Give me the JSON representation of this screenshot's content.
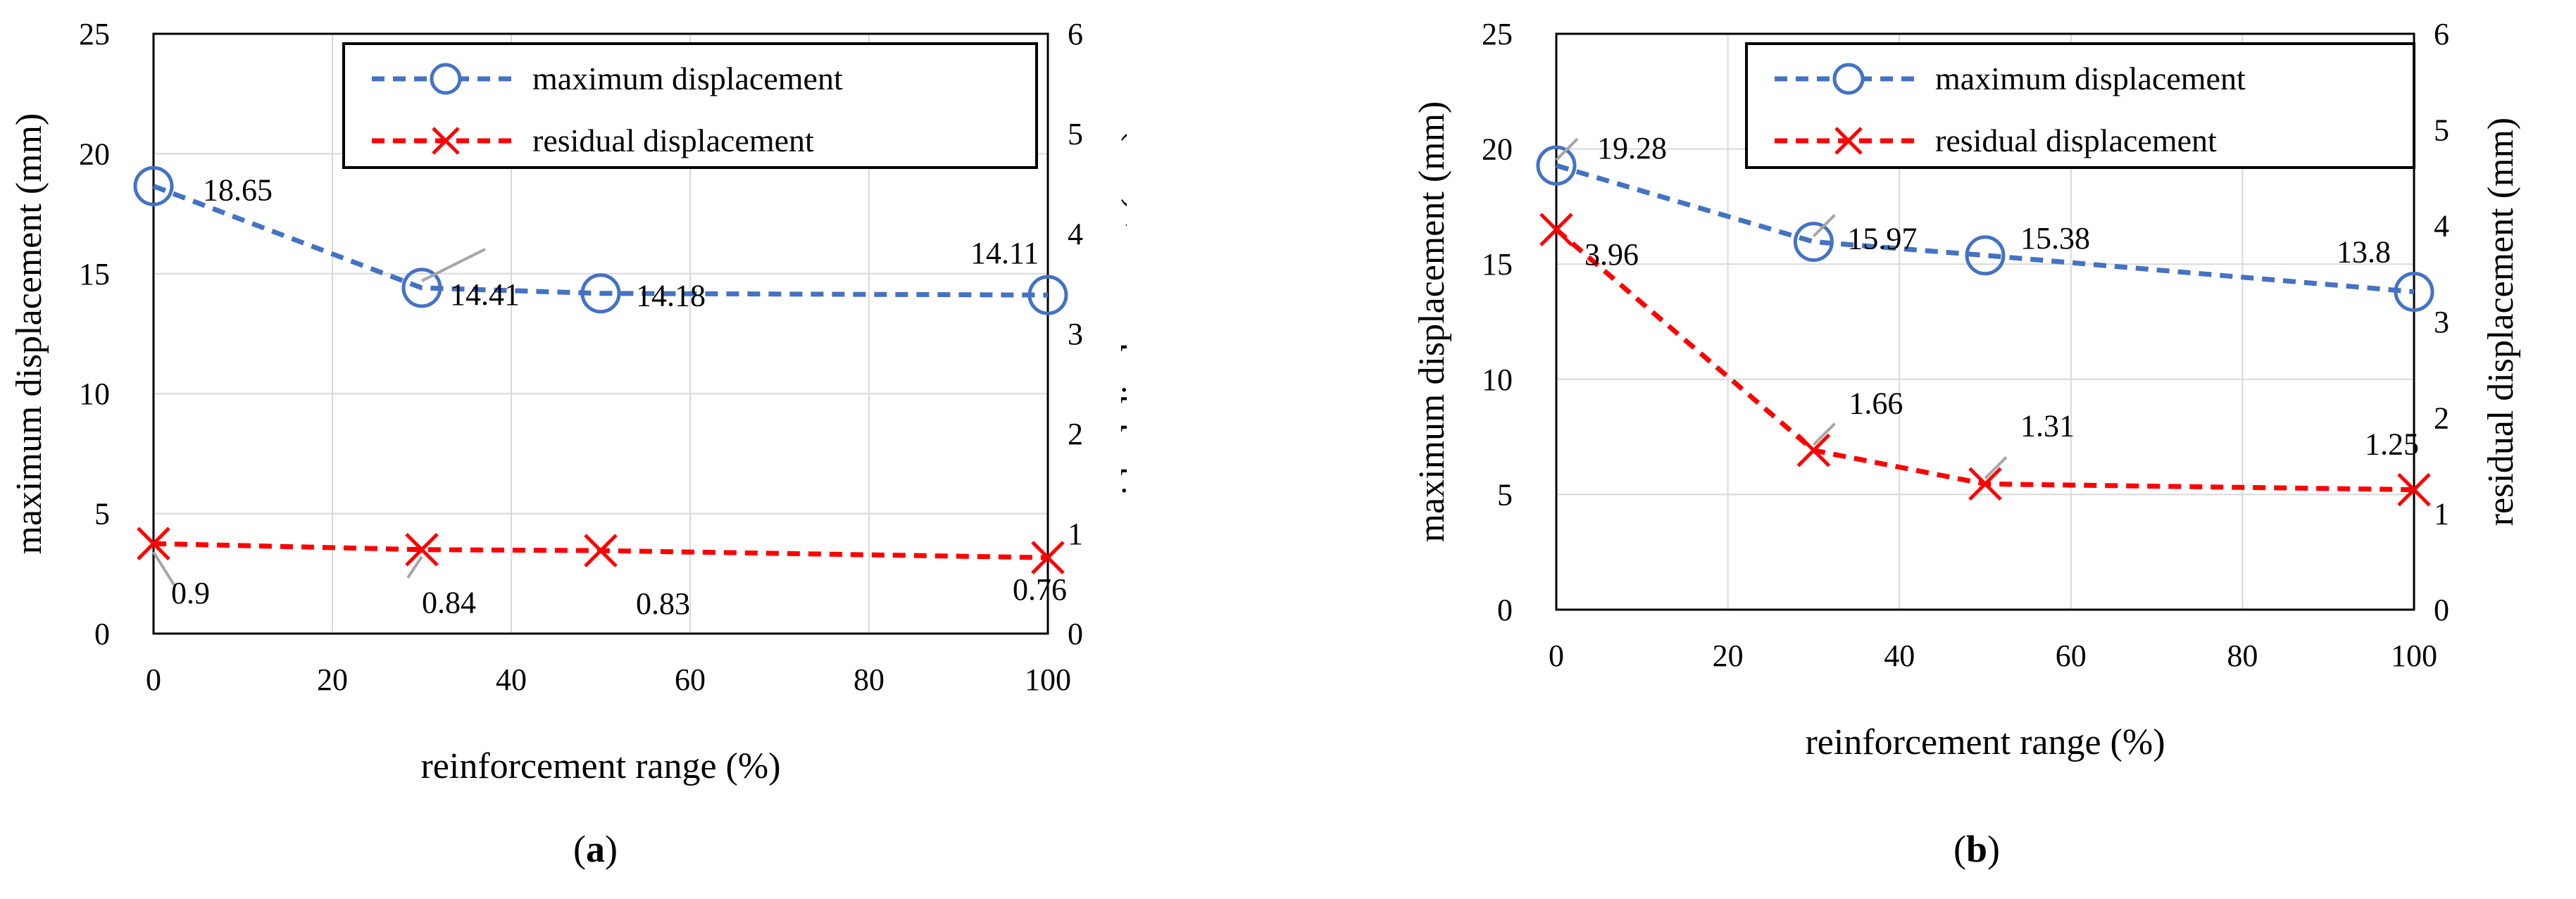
{
  "chart_data": [
    {
      "type": "line",
      "panel_label": "a",
      "xlabel": "reinforcement range (%)",
      "ylabel": "maximum displacement (mm)",
      "y2label": "residual displacement (mm)",
      "xlim": [
        0,
        100
      ],
      "xticks": [
        "0",
        "20",
        "40",
        "60",
        "80",
        "100"
      ],
      "ylim": [
        0,
        25
      ],
      "yticks": [
        "0",
        "5",
        "10",
        "15",
        "20",
        "25"
      ],
      "y2lim": [
        0,
        6
      ],
      "y2ticks": [
        "0",
        "1",
        "2",
        "3",
        "4",
        "5",
        "6"
      ],
      "grid": true,
      "legend_position": "top-right",
      "x": [
        0,
        30,
        50,
        100
      ],
      "series": [
        {
          "name": "maximum displacement",
          "axis": "left",
          "color": "#4472C4",
          "marker": "circle",
          "values": [
            18.65,
            14.41,
            14.18,
            14.11
          ],
          "labels": [
            "18.65",
            "14.41",
            "14.18",
            "14.11"
          ]
        },
        {
          "name": "residual displacement",
          "axis": "right",
          "color": "#FF0000",
          "marker": "x",
          "values": [
            0.9,
            0.84,
            0.83,
            0.76
          ],
          "labels": [
            "0.9",
            "0.84",
            "0.83",
            "0.76"
          ]
        }
      ]
    },
    {
      "type": "line",
      "panel_label": "b",
      "xlabel": "reinforcement range (%)",
      "ylabel": "maximum displacement (mm)",
      "y2label": "residual displacement (mm)",
      "xlim": [
        0,
        100
      ],
      "xticks": [
        "0",
        "20",
        "40",
        "60",
        "80",
        "100"
      ],
      "ylim": [
        0,
        25
      ],
      "yticks": [
        "0",
        "5",
        "10",
        "15",
        "20",
        "25"
      ],
      "y2lim": [
        0,
        6
      ],
      "y2ticks": [
        "0",
        "1",
        "2",
        "3",
        "4",
        "5",
        "6"
      ],
      "grid": true,
      "legend_position": "top-right",
      "x": [
        0,
        30,
        50,
        100
      ],
      "series": [
        {
          "name": "maximum displacement",
          "axis": "left",
          "color": "#4472C4",
          "marker": "circle",
          "values": [
            19.28,
            15.97,
            15.38,
            13.8
          ],
          "labels": [
            "19.28",
            "15.97",
            "15.38",
            "13.8"
          ]
        },
        {
          "name": "residual displacement",
          "axis": "right",
          "color": "#FF0000",
          "marker": "x",
          "values": [
            3.96,
            1.66,
            1.31,
            1.25
          ],
          "labels": [
            "3.96",
            "1.66",
            "1.31",
            "1.25"
          ]
        }
      ]
    }
  ],
  "captions": {
    "a": "a",
    "b": "b"
  }
}
